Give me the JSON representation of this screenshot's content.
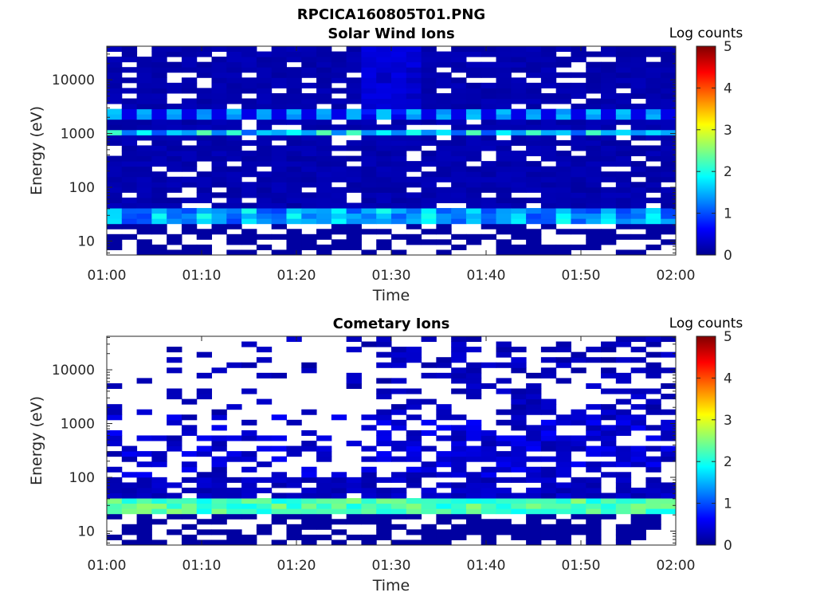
{
  "figure": {
    "title": "RPCICA160805T01.PNG"
  },
  "chart_data": [
    {
      "type": "heatmap",
      "title": "Solar Wind Ions",
      "xlabel": "Time",
      "ylabel": "Energy (eV)",
      "x_ticks": [
        "01:00",
        "01:10",
        "01:20",
        "01:30",
        "01:40",
        "01:50",
        "02:00"
      ],
      "y_ticks": [
        "10",
        "100",
        "1000",
        "10000"
      ],
      "y_scale": "log",
      "x_range": [
        "01:00",
        "02:00"
      ],
      "y_range_ev": [
        5.5,
        42000
      ],
      "colorbar": {
        "title": "Log counts",
        "ticks": [
          "0",
          "1",
          "2",
          "3",
          "4",
          "5"
        ],
        "range": [
          0,
          5
        ],
        "colormap": "jet"
      },
      "features": [
        {
          "energy_ev": 1000,
          "log_counts": 2.3,
          "description_pattern": "periodic"
        },
        {
          "energy_ev": 2200,
          "log_counts": 1.6,
          "description_pattern": "periodic"
        },
        {
          "energy_ev": 32,
          "log_counts": 1.4
        }
      ]
    },
    {
      "type": "heatmap",
      "title": "Cometary Ions",
      "xlabel": "Time",
      "ylabel": "Energy (eV)",
      "x_ticks": [
        "01:00",
        "01:10",
        "01:20",
        "01:30",
        "01:40",
        "01:50",
        "02:00"
      ],
      "y_ticks": [
        "10",
        "100",
        "1000",
        "10000"
      ],
      "y_scale": "log",
      "x_range": [
        "01:00",
        "02:00"
      ],
      "y_range_ev": [
        5.5,
        42000
      ],
      "colorbar": {
        "title": "Log counts",
        "ticks": [
          "0",
          "1",
          "2",
          "3",
          "4",
          "5"
        ],
        "range": [
          0,
          5
        ],
        "colormap": "jet"
      },
      "features": [
        {
          "energy_ev": 32,
          "log_counts": 2.6
        },
        {
          "energy_ev": 1100,
          "log_counts": 0.8
        }
      ]
    }
  ]
}
